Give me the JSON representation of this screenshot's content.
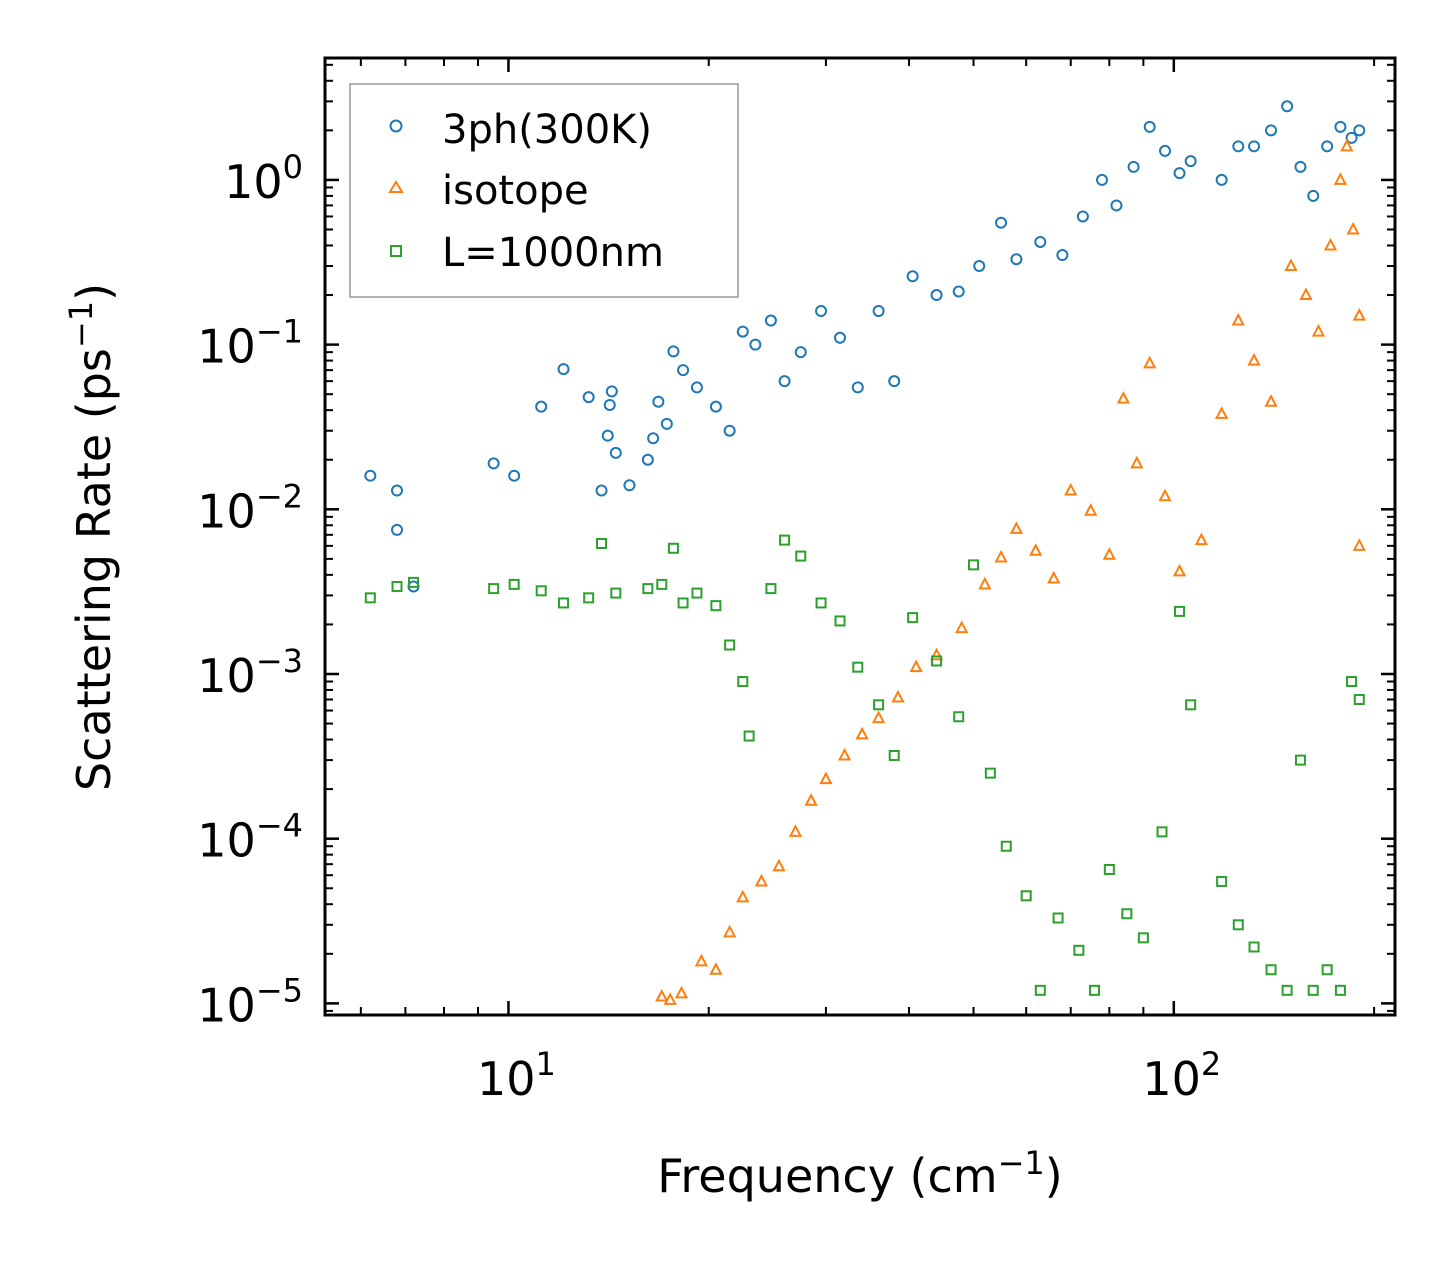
{
  "chart_data": {
    "type": "scatter",
    "xscale": "log",
    "yscale": "log",
    "xlim": [
      5.3,
      215
    ],
    "ylim": [
      8.5e-06,
      5.5
    ],
    "xlabel": "Frequency (cm",
    "xlabel_sup": "−1",
    "xlabel_end": ")",
    "ylabel": "Scattering Rate (ps",
    "ylabel_sup": "−1",
    "ylabel_end": ")",
    "xticks": [
      {
        "value": 10,
        "base": "10",
        "exp": "1"
      },
      {
        "value": 100,
        "base": "10",
        "exp": "2"
      }
    ],
    "yticks": [
      {
        "value": 1,
        "base": "10",
        "exp": "0"
      },
      {
        "value": 0.1,
        "base": "10",
        "exp": "−1"
      },
      {
        "value": 0.01,
        "base": "10",
        "exp": "−2"
      },
      {
        "value": 0.001,
        "base": "10",
        "exp": "−3"
      },
      {
        "value": 0.0001,
        "base": "10",
        "exp": "−4"
      },
      {
        "value": 1e-05,
        "base": "10",
        "exp": "−5"
      }
    ],
    "legend_position": "top-left",
    "series": [
      {
        "name": "3ph(300K)",
        "marker": "circle",
        "color": "#1f77b4",
        "points": [
          [
            6.2,
            0.016
          ],
          [
            6.8,
            0.0075
          ],
          [
            6.8,
            0.013
          ],
          [
            7.2,
            0.0034
          ],
          [
            9.5,
            0.019
          ],
          [
            10.2,
            0.016
          ],
          [
            11.2,
            0.042
          ],
          [
            12.1,
            0.071
          ],
          [
            13.2,
            0.048
          ],
          [
            13.8,
            0.013
          ],
          [
            14.1,
            0.028
          ],
          [
            14.2,
            0.043
          ],
          [
            14.3,
            0.052
          ],
          [
            14.5,
            0.022
          ],
          [
            15.2,
            0.014
          ],
          [
            16.2,
            0.02
          ],
          [
            16.5,
            0.027
          ],
          [
            16.8,
            0.045
          ],
          [
            17.3,
            0.033
          ],
          [
            17.7,
            0.091
          ],
          [
            18.3,
            0.07
          ],
          [
            19.2,
            0.055
          ],
          [
            20.5,
            0.042
          ],
          [
            21.5,
            0.03
          ],
          [
            22.5,
            0.12
          ],
          [
            23.5,
            0.1
          ],
          [
            24.8,
            0.14
          ],
          [
            26.0,
            0.06
          ],
          [
            27.5,
            0.09
          ],
          [
            29.5,
            0.16
          ],
          [
            31.5,
            0.11
          ],
          [
            33.5,
            0.055
          ],
          [
            36.0,
            0.16
          ],
          [
            38.0,
            0.06
          ],
          [
            40.5,
            0.26
          ],
          [
            44.0,
            0.2
          ],
          [
            47.5,
            0.21
          ],
          [
            51.0,
            0.3
          ],
          [
            55.0,
            0.55
          ],
          [
            58.0,
            0.33
          ],
          [
            63.0,
            0.42
          ],
          [
            68.0,
            0.35
          ],
          [
            73.0,
            0.6
          ],
          [
            78.0,
            1.0
          ],
          [
            82.0,
            0.7
          ],
          [
            87.0,
            1.2
          ],
          [
            92.0,
            2.1
          ],
          [
            97.0,
            1.5
          ],
          [
            102.0,
            1.1
          ],
          [
            106.0,
            1.3
          ],
          [
            118.0,
            1.0
          ],
          [
            125.0,
            1.6
          ],
          [
            132.0,
            1.6
          ],
          [
            140.0,
            2.0
          ],
          [
            148.0,
            2.8
          ],
          [
            155.0,
            1.2
          ],
          [
            162.0,
            0.8
          ],
          [
            170.0,
            1.6
          ],
          [
            178.0,
            2.1
          ],
          [
            185.0,
            1.8
          ],
          [
            190.0,
            2.0
          ]
        ]
      },
      {
        "name": "isotope",
        "marker": "triangle",
        "color": "#ff7f0e",
        "points": [
          [
            17.0,
            1.1e-05
          ],
          [
            17.5,
            1.05e-05
          ],
          [
            18.2,
            1.15e-05
          ],
          [
            19.5,
            1.8e-05
          ],
          [
            20.5,
            1.6e-05
          ],
          [
            21.5,
            2.7e-05
          ],
          [
            22.5,
            4.4e-05
          ],
          [
            24.0,
            5.5e-05
          ],
          [
            25.5,
            6.8e-05
          ],
          [
            27.0,
            0.00011
          ],
          [
            28.5,
            0.00017
          ],
          [
            30.0,
            0.00023
          ],
          [
            32.0,
            0.00032
          ],
          [
            34.0,
            0.00043
          ],
          [
            36.0,
            0.00054
          ],
          [
            38.5,
            0.00072
          ],
          [
            41.0,
            0.0011
          ],
          [
            44.0,
            0.0013
          ],
          [
            48.0,
            0.0019
          ],
          [
            52.0,
            0.0035
          ],
          [
            55.0,
            0.0051
          ],
          [
            58.0,
            0.0076
          ],
          [
            62.0,
            0.0056
          ],
          [
            66.0,
            0.0038
          ],
          [
            70.0,
            0.013
          ],
          [
            75.0,
            0.0098
          ],
          [
            80.0,
            0.0053
          ],
          [
            84.0,
            0.047
          ],
          [
            88.0,
            0.019
          ],
          [
            92.0,
            0.077
          ],
          [
            97.0,
            0.012
          ],
          [
            102.0,
            0.0042
          ],
          [
            110.0,
            0.0065
          ],
          [
            118.0,
            0.038
          ],
          [
            125.0,
            0.14
          ],
          [
            132.0,
            0.08
          ],
          [
            140.0,
            0.045
          ],
          [
            150.0,
            0.3
          ],
          [
            158.0,
            0.2
          ],
          [
            165.0,
            0.12
          ],
          [
            172.0,
            0.4
          ],
          [
            178.0,
            1.0
          ],
          [
            182.0,
            1.6
          ],
          [
            186.0,
            0.5
          ],
          [
            190.0,
            0.15
          ],
          [
            190.0,
            0.006
          ]
        ]
      },
      {
        "name": "L=1000nm",
        "marker": "square",
        "color": "#2ca02c",
        "points": [
          [
            6.2,
            0.0029
          ],
          [
            6.8,
            0.0034
          ],
          [
            7.2,
            0.0036
          ],
          [
            9.5,
            0.0033
          ],
          [
            10.2,
            0.0035
          ],
          [
            11.2,
            0.0032
          ],
          [
            12.1,
            0.0027
          ],
          [
            13.2,
            0.0029
          ],
          [
            13.8,
            0.0062
          ],
          [
            14.5,
            0.0031
          ],
          [
            16.2,
            0.0033
          ],
          [
            17.0,
            0.0035
          ],
          [
            17.7,
            0.0058
          ],
          [
            18.3,
            0.0027
          ],
          [
            19.2,
            0.0031
          ],
          [
            20.5,
            0.0026
          ],
          [
            21.5,
            0.0015
          ],
          [
            22.5,
            0.0009
          ],
          [
            23.0,
            0.00042
          ],
          [
            24.8,
            0.0033
          ],
          [
            26.0,
            0.0065
          ],
          [
            27.5,
            0.0052
          ],
          [
            29.5,
            0.0027
          ],
          [
            31.5,
            0.0021
          ],
          [
            33.5,
            0.0011
          ],
          [
            36.0,
            0.00065
          ],
          [
            38.0,
            0.00032
          ],
          [
            40.5,
            0.0022
          ],
          [
            44.0,
            0.0012
          ],
          [
            47.5,
            0.00055
          ],
          [
            50.0,
            0.0046
          ],
          [
            53.0,
            0.00025
          ],
          [
            56.0,
            9e-05
          ],
          [
            60.0,
            4.5e-05
          ],
          [
            63.0,
            1.2e-05
          ],
          [
            67.0,
            3.3e-05
          ],
          [
            72.0,
            2.1e-05
          ],
          [
            76.0,
            1.2e-05
          ],
          [
            80.0,
            6.5e-05
          ],
          [
            85.0,
            3.5e-05
          ],
          [
            90.0,
            2.5e-05
          ],
          [
            96.0,
            0.00011
          ],
          [
            102.0,
            0.0024
          ],
          [
            106.0,
            0.00065
          ],
          [
            118.0,
            5.5e-05
          ],
          [
            125.0,
            3e-05
          ],
          [
            132.0,
            2.2e-05
          ],
          [
            140.0,
            1.6e-05
          ],
          [
            148.0,
            1.2e-05
          ],
          [
            155.0,
            0.0003
          ],
          [
            162.0,
            1.2e-05
          ],
          [
            170.0,
            1.6e-05
          ],
          [
            178.0,
            1.2e-05
          ],
          [
            185.0,
            0.0009
          ],
          [
            190.0,
            0.0007
          ]
        ]
      }
    ]
  }
}
